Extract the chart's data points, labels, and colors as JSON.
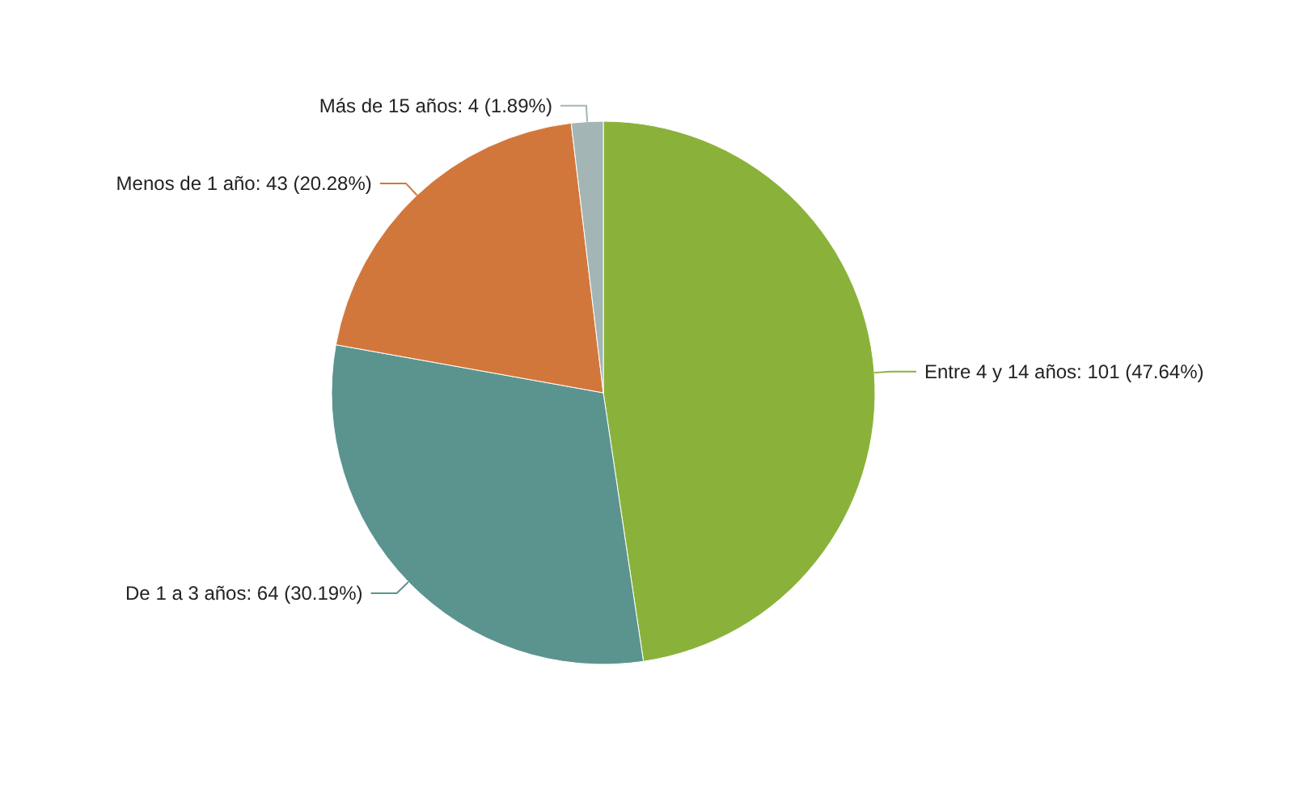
{
  "chart_data": {
    "type": "pie",
    "categories": [
      "Entre 4 y 14 años",
      "De 1 a 3 años",
      "Menos de 1 año",
      "Más de 15 años"
    ],
    "values": [
      101,
      64,
      43,
      4
    ],
    "colors": [
      "#8ab23a",
      "#5b948f",
      "#d2773c",
      "#a3b5b5"
    ],
    "value_labels": [
      "101 (47.64%)",
      "64 (30.19%)",
      "43 (20.28%)",
      "4 (1.89%)"
    ]
  }
}
